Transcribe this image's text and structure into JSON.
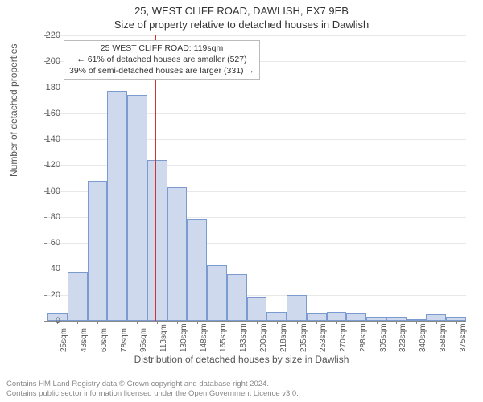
{
  "titles": {
    "main": "25, WEST CLIFF ROAD, DAWLISH, EX7 9EB",
    "sub": "Size of property relative to detached houses in Dawlish"
  },
  "axes": {
    "ylabel": "Number of detached properties",
    "xlabel": "Distribution of detached houses by size in Dawlish",
    "ylim": [
      0,
      220
    ],
    "ytick_step": 20,
    "yticks": [
      0,
      20,
      40,
      60,
      80,
      100,
      120,
      140,
      160,
      180,
      200,
      220
    ]
  },
  "chart": {
    "type": "histogram",
    "bar_fill": "#cfd9ee",
    "bar_border": "#7a9ad0",
    "grid_color": "#e8e8e8",
    "background": "#ffffff",
    "categories": [
      "25sqm",
      "43sqm",
      "60sqm",
      "78sqm",
      "95sqm",
      "113sqm",
      "130sqm",
      "148sqm",
      "165sqm",
      "183sqm",
      "200sqm",
      "218sqm",
      "235sqm",
      "253sqm",
      "270sqm",
      "288sqm",
      "305sqm",
      "323sqm",
      "340sqm",
      "358sqm",
      "375sqm"
    ],
    "values": [
      6,
      38,
      108,
      177,
      174,
      124,
      103,
      78,
      43,
      36,
      18,
      7,
      20,
      6,
      7,
      6,
      3,
      3,
      0,
      5,
      3
    ]
  },
  "reference": {
    "color": "#cc3333",
    "position_index": 5.4,
    "box": {
      "line1": "25 WEST CLIFF ROAD: 119sqm",
      "line2": "← 61% of detached houses are smaller (527)",
      "line3": "39% of semi-detached houses are larger (331) →"
    }
  },
  "footer": {
    "line1": "Contains HM Land Registry data © Crown copyright and database right 2024.",
    "line2": "Contains public sector information licensed under the Open Government Licence v3.0."
  }
}
